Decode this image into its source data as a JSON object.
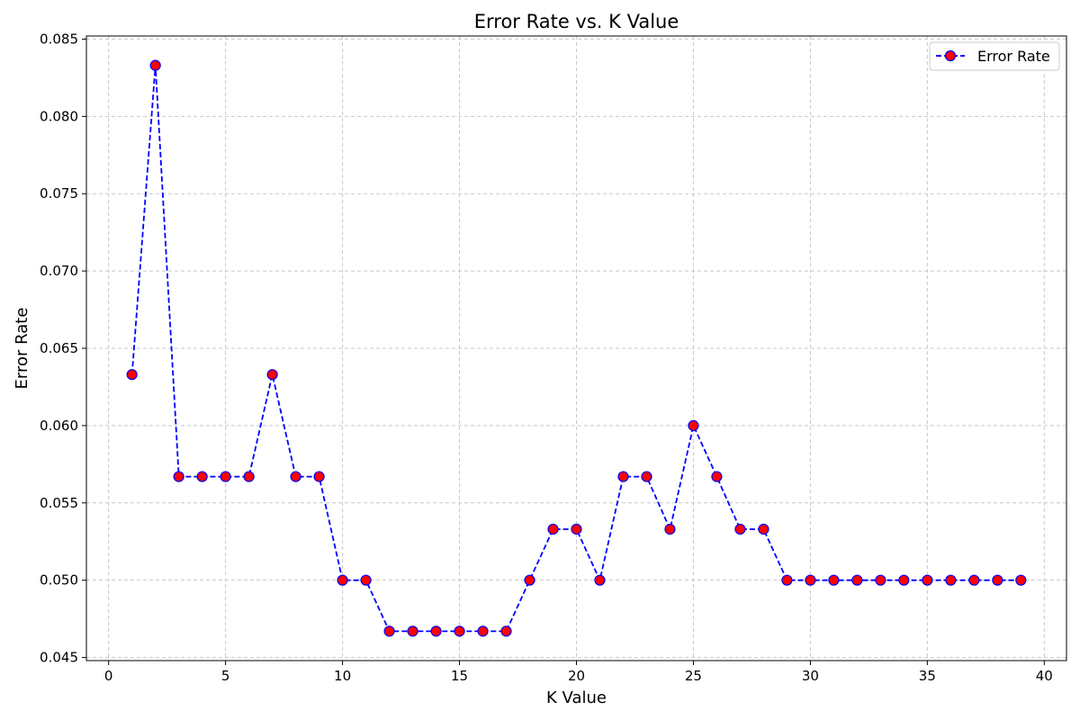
{
  "chart_data": {
    "type": "line",
    "title": "Error Rate vs. K Value",
    "xlabel": "K Value",
    "ylabel": "Error Rate",
    "xlim": [
      -0.95,
      40.95
    ],
    "ylim": [
      0.0448,
      0.0852
    ],
    "xticks": [
      0,
      5,
      10,
      15,
      20,
      25,
      30,
      35,
      40
    ],
    "yticks": [
      0.045,
      0.05,
      0.055,
      0.06,
      0.065,
      0.07,
      0.075,
      0.08,
      0.085
    ],
    "ytick_labels": [
      "0.045",
      "0.050",
      "0.055",
      "0.060",
      "0.065",
      "0.070",
      "0.075",
      "0.080",
      "0.085"
    ],
    "grid": true,
    "legend_position": "top-right",
    "colors": {
      "line": "#0000ff",
      "marker_fill": "#ff0000",
      "marker_edge": "#0000ff",
      "grid": "#c8c8c8"
    },
    "series": [
      {
        "name": "Error Rate",
        "x": [
          1,
          2,
          3,
          4,
          5,
          6,
          7,
          8,
          9,
          10,
          11,
          12,
          13,
          14,
          15,
          16,
          17,
          18,
          19,
          20,
          21,
          22,
          23,
          24,
          25,
          26,
          27,
          28,
          29,
          30,
          31,
          32,
          33,
          34,
          35,
          36,
          37,
          38,
          39
        ],
        "y": [
          0.0633,
          0.0833,
          0.0567,
          0.0567,
          0.0567,
          0.0567,
          0.0633,
          0.0567,
          0.0567,
          0.05,
          0.05,
          0.0467,
          0.0467,
          0.0467,
          0.0467,
          0.0467,
          0.0467,
          0.05,
          0.0533,
          0.0533,
          0.05,
          0.0567,
          0.0567,
          0.0533,
          0.06,
          0.0567,
          0.0533,
          0.0533,
          0.05,
          0.05,
          0.05,
          0.05,
          0.05,
          0.05,
          0.05,
          0.05,
          0.05,
          0.05,
          0.05
        ]
      }
    ]
  }
}
